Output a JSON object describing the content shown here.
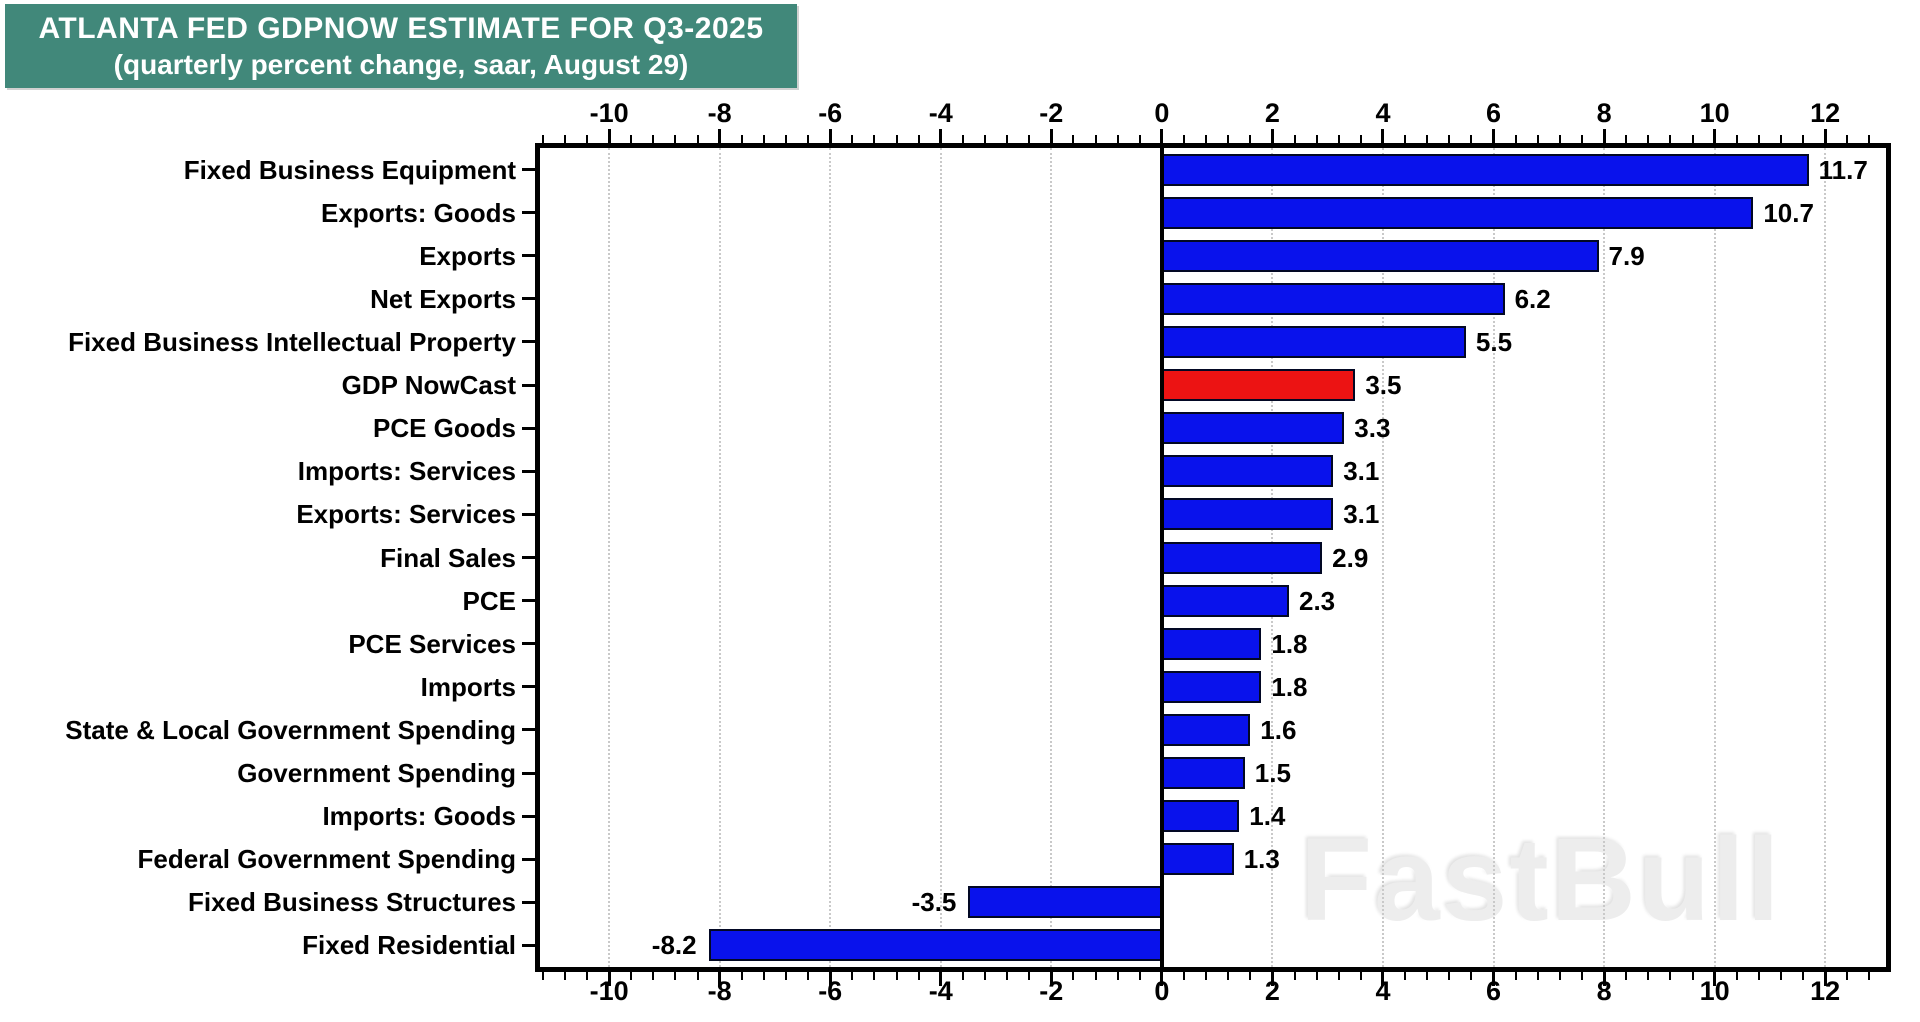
{
  "title": {
    "line1": "ATLANTA FED GDPNOW ESTIMATE FOR Q3-2025",
    "line2": "(quarterly percent change, saar, August 29)"
  },
  "watermark": "FastBull",
  "colors": {
    "banner_background": "#41887a",
    "bar_blue": "#0912ec",
    "bar_red": "#ec1313",
    "bar_border": "#020824",
    "grid": "#c9c9c9",
    "axis": "#000000",
    "title_text": "#ffffff",
    "plot_background": "#ffffff"
  },
  "chart_data": {
    "type": "bar",
    "orientation": "horizontal",
    "title": "ATLANTA FED GDPNOW ESTIMATE FOR Q3-2025 (quarterly percent change, saar, August 29)",
    "categories": [
      "Fixed Business Equipment",
      "Exports: Goods",
      "Exports",
      "Net Exports",
      "Fixed Business Intellectual Property",
      "GDP NowCast",
      "PCE Goods",
      "Imports: Services",
      "Exports: Services",
      "Final Sales",
      "PCE",
      "PCE Services",
      "Imports",
      "State & Local Government Spending",
      "Government Spending",
      "Imports: Goods",
      "Federal Government Spending",
      "Fixed Business Structures",
      "Fixed Residential"
    ],
    "values": [
      11.7,
      10.7,
      7.9,
      6.2,
      5.5,
      3.5,
      3.3,
      3.1,
      3.1,
      2.9,
      2.3,
      1.8,
      1.8,
      1.6,
      1.5,
      1.4,
      1.3,
      -3.5,
      -8.2
    ],
    "value_labels": [
      "11.7",
      "10.7",
      "7.9",
      "6.2",
      "5.5",
      "3.5",
      "3.3",
      "3.1",
      "3.1",
      "2.9",
      "2.3",
      "1.8",
      "1.8",
      "1.6",
      "1.5",
      "1.4",
      "1.3",
      "-3.5",
      "-8.2"
    ],
    "highlight_index": 5,
    "xlim": [
      -11.25,
      13.1
    ],
    "x_major_ticks": [
      -10,
      -8,
      -6,
      -4,
      -2,
      0,
      2,
      4,
      6,
      8,
      10,
      12
    ],
    "x_major_tick_labels": [
      "-10",
      "-8",
      "-6",
      "-4",
      "-2",
      "0",
      "2",
      "4",
      "6",
      "8",
      "10",
      "12"
    ],
    "x_minor_step": 0.4,
    "grid": "vertical dotted at major ticks",
    "zero_line": true,
    "axis_label_positions": [
      "top",
      "bottom"
    ],
    "xlabel": "",
    "ylabel": ""
  }
}
